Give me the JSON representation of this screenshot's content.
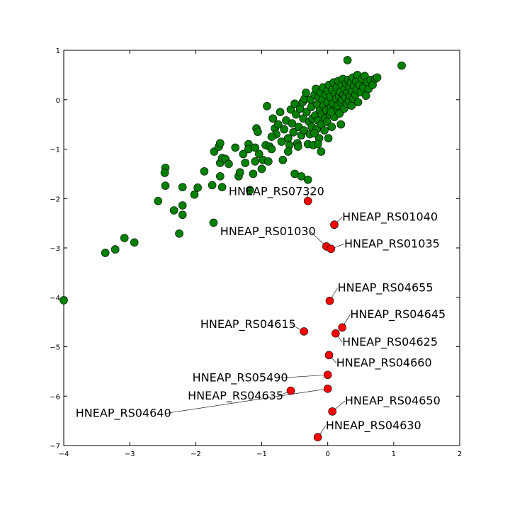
{
  "chart_data": {
    "type": "scatter",
    "title": "",
    "xlabel": "",
    "ylabel": "",
    "xlim": [
      -4,
      2
    ],
    "ylim": [
      -7,
      1
    ],
    "xticks": [
      -4,
      -3,
      -2,
      -1,
      0,
      1,
      2
    ],
    "xtick_labels": [
      "−4",
      "−3",
      "−2",
      "−1",
      "0",
      "1",
      "2"
    ],
    "yticks": [
      -7,
      -6,
      -5,
      -4,
      -3,
      -2,
      -1,
      0,
      1
    ],
    "ytick_labels": [
      "−7",
      "−6",
      "−5",
      "−4",
      "−3",
      "−2",
      "−1",
      "0",
      "1"
    ],
    "grid": false,
    "legend": "none",
    "series": [
      {
        "color": "#008000",
        "points": [
          [
            -4.0,
            -4.06
          ],
          [
            -3.37,
            -3.1
          ],
          [
            -3.22,
            -3.03
          ],
          [
            -3.08,
            -2.8
          ],
          [
            -2.93,
            -2.89
          ],
          [
            -2.57,
            -2.05
          ],
          [
            -2.46,
            -1.38
          ],
          [
            -2.47,
            -1.48
          ],
          [
            -2.46,
            -1.74
          ],
          [
            -2.33,
            -2.24
          ],
          [
            -2.25,
            -2.71
          ],
          [
            -2.2,
            -2.33
          ],
          [
            -2.2,
            -2.14
          ],
          [
            -2.2,
            -1.77
          ],
          [
            -2.02,
            -1.92
          ],
          [
            -1.97,
            -1.78
          ],
          [
            -1.87,
            -1.45
          ],
          [
            -1.75,
            -1.73
          ],
          [
            -1.73,
            -2.49
          ],
          [
            -1.72,
            -1.05
          ],
          [
            -1.65,
            -0.95
          ],
          [
            -1.63,
            -0.88
          ],
          [
            -1.63,
            -1.28
          ],
          [
            -1.63,
            -1.55
          ],
          [
            -1.6,
            -1.77
          ],
          [
            -1.6,
            -1.18
          ],
          [
            -1.55,
            -1.2
          ],
          [
            -1.5,
            -1.3
          ],
          [
            -1.4,
            -0.97
          ],
          [
            -1.35,
            -1.55
          ],
          [
            -1.33,
            -1.47
          ],
          [
            -1.28,
            -1.1
          ],
          [
            -1.25,
            -1.28
          ],
          [
            -1.2,
            -0.9
          ],
          [
            -1.2,
            -1.0
          ],
          [
            -1.18,
            -1.83
          ],
          [
            -1.13,
            -1.5
          ],
          [
            -1.1,
            -0.97
          ],
          [
            -1.1,
            -1.25
          ],
          [
            -1.08,
            -0.58
          ],
          [
            -1.06,
            -0.65
          ],
          [
            -1.04,
            -1.1
          ],
          [
            -1.0,
            -1.4
          ],
          [
            -0.98,
            -1.22
          ],
          [
            -0.94,
            -0.92
          ],
          [
            -0.92,
            -0.13
          ],
          [
            -0.9,
            -1.25
          ],
          [
            -0.88,
            -0.95
          ],
          [
            -0.85,
            -1.0
          ],
          [
            -0.83,
            -0.38
          ],
          [
            -0.8,
            -0.58
          ],
          [
            -0.78,
            -0.7
          ],
          [
            -0.75,
            -0.5
          ],
          [
            -0.72,
            -0.25
          ],
          [
            -0.7,
            -0.85
          ],
          [
            -0.68,
            -1.22
          ],
          [
            -0.66,
            -0.6
          ],
          [
            -0.63,
            -0.42
          ],
          [
            -0.6,
            -0.78
          ],
          [
            -0.58,
            -0.92
          ],
          [
            -0.56,
            -0.2
          ],
          [
            -0.54,
            -0.48
          ],
          [
            -0.52,
            -0.66
          ],
          [
            -0.5,
            -0.08
          ],
          [
            -0.48,
            -0.3
          ],
          [
            -0.5,
            -1.5
          ],
          [
            -0.46,
            -0.88
          ],
          [
            -0.44,
            -0.55
          ],
          [
            -0.42,
            -0.18
          ],
          [
            -0.4,
            -0.72
          ],
          [
            -0.4,
            -1.55
          ],
          [
            -0.38,
            -0.05
          ],
          [
            -0.37,
            -0.38
          ],
          [
            -0.36,
            -0.62
          ],
          [
            -0.35,
            0.02
          ],
          [
            -0.33,
            0.14
          ],
          [
            -0.32,
            -0.25
          ],
          [
            -0.3,
            -0.9
          ],
          [
            -0.3,
            -1.62
          ],
          [
            -0.28,
            -0.45
          ],
          [
            -0.27,
            -0.7
          ],
          [
            -0.26,
            0.0
          ],
          [
            -0.25,
            -0.15
          ],
          [
            -0.24,
            -0.55
          ],
          [
            -0.23,
            -0.38
          ],
          [
            -0.22,
            -0.92
          ],
          [
            -0.2,
            0.1
          ],
          [
            -0.19,
            -0.32
          ],
          [
            -0.18,
            0.22
          ],
          [
            -0.17,
            -0.6
          ],
          [
            -0.16,
            -0.1
          ],
          [
            -0.15,
            -0.42
          ],
          [
            -0.14,
            0.05
          ],
          [
            -0.13,
            -0.78
          ],
          [
            -0.12,
            -0.22
          ],
          [
            -0.11,
            0.15
          ],
          [
            -0.1,
            -1.05
          ],
          [
            -0.1,
            -0.5
          ],
          [
            -0.09,
            -0.3
          ],
          [
            -0.08,
            0.0
          ],
          [
            -0.07,
            0.25
          ],
          [
            -0.06,
            -0.12
          ],
          [
            -0.05,
            -0.62
          ],
          [
            -0.04,
            -0.38
          ],
          [
            -0.03,
            0.1
          ],
          [
            -0.02,
            -0.22
          ],
          [
            -0.01,
            -0.45
          ],
          [
            0.0,
            0.18
          ],
          [
            0.0,
            -0.05
          ],
          [
            0.01,
            -0.78
          ],
          [
            0.02,
            0.3
          ],
          [
            0.03,
            -0.3
          ],
          [
            0.04,
            0.06
          ],
          [
            0.05,
            -0.15
          ],
          [
            0.06,
            -0.55
          ],
          [
            0.07,
            0.2
          ],
          [
            0.08,
            -0.08
          ],
          [
            0.09,
            0.35
          ],
          [
            0.1,
            -0.35
          ],
          [
            0.11,
            0.12
          ],
          [
            0.12,
            -0.2
          ],
          [
            0.13,
            0.02
          ],
          [
            0.14,
            0.25
          ],
          [
            0.15,
            -0.12
          ],
          [
            0.16,
            0.38
          ],
          [
            0.17,
            0.08
          ],
          [
            0.18,
            -0.28
          ],
          [
            0.19,
            0.16
          ],
          [
            0.2,
            -0.05
          ],
          [
            0.21,
            0.3
          ],
          [
            0.22,
            0.0
          ],
          [
            0.23,
            0.42
          ],
          [
            0.24,
            0.1
          ],
          [
            0.25,
            -0.18
          ],
          [
            0.26,
            0.22
          ],
          [
            0.27,
            0.05
          ],
          [
            0.28,
            0.33
          ],
          [
            0.29,
            -0.08
          ],
          [
            0.3,
            0.8
          ],
          [
            0.3,
            0.15
          ],
          [
            0.31,
            0.4
          ],
          [
            0.32,
            -0.02
          ],
          [
            0.33,
            0.25
          ],
          [
            0.34,
            0.08
          ],
          [
            0.35,
            0.35
          ],
          [
            0.36,
            -0.12
          ],
          [
            0.37,
            0.18
          ],
          [
            0.38,
            0.45
          ],
          [
            0.39,
            0.02
          ],
          [
            0.4,
            0.28
          ],
          [
            0.42,
            0.1
          ],
          [
            0.43,
            0.38
          ],
          [
            0.44,
            0.2
          ],
          [
            0.45,
            0.5
          ],
          [
            0.46,
            -0.05
          ],
          [
            0.48,
            0.3
          ],
          [
            0.5,
            0.15
          ],
          [
            0.52,
            0.42
          ],
          [
            0.54,
            0.25
          ],
          [
            0.56,
            0.48
          ],
          [
            0.58,
            0.08
          ],
          [
            0.6,
            0.35
          ],
          [
            0.62,
            0.22
          ],
          [
            0.65,
            0.4
          ],
          [
            0.68,
            0.3
          ],
          [
            0.72,
            0.42
          ],
          [
            0.75,
            0.45
          ],
          [
            1.12,
            0.69
          ],
          [
            0.2,
            -0.5
          ],
          [
            -0.15,
            -0.9
          ],
          [
            -0.6,
            -1.05
          ],
          [
            -0.85,
            -0.75
          ],
          [
            0.05,
            -0.25
          ],
          [
            -0.2,
            -0.68
          ],
          [
            -0.45,
            -0.95
          ]
        ]
      },
      {
        "color": "#ff0000",
        "points": [
          [
            -0.3,
            -2.05
          ],
          [
            0.1,
            -2.53
          ],
          [
            -0.02,
            -2.97
          ],
          [
            0.05,
            -3.02
          ],
          [
            0.03,
            -4.07
          ],
          [
            -0.36,
            -4.69
          ],
          [
            0.22,
            -4.61
          ],
          [
            0.12,
            -4.73
          ],
          [
            0.02,
            -5.17
          ],
          [
            0.0,
            -5.57
          ],
          [
            -0.56,
            -5.89
          ],
          [
            0.0,
            -5.85
          ],
          [
            0.07,
            -6.31
          ],
          [
            -0.15,
            -6.83
          ]
        ]
      }
    ],
    "annotations": [
      {
        "text": "HNEAP_RS07320",
        "x": -0.3,
        "y": -2.05,
        "label_x": -1.5,
        "label_y": -1.93,
        "anchor": "start",
        "leader": true
      },
      {
        "text": "HNEAP_RS01040",
        "x": 0.1,
        "y": -2.53,
        "label_x": 0.22,
        "label_y": -2.45,
        "anchor": "start",
        "leader": true
      },
      {
        "text": "HNEAP_RS01030",
        "x": -0.02,
        "y": -2.97,
        "label_x": -1.63,
        "label_y": -2.74,
        "anchor": "start",
        "leader": true
      },
      {
        "text": "HNEAP_RS01035",
        "x": 0.05,
        "y": -3.02,
        "label_x": 0.25,
        "label_y": -2.99,
        "anchor": "start",
        "leader": true
      },
      {
        "text": "HNEAP_RS04655",
        "x": 0.03,
        "y": -4.07,
        "label_x": 0.15,
        "label_y": -3.88,
        "anchor": "start",
        "leader": true
      },
      {
        "text": "HNEAP_RS04615",
        "x": -0.36,
        "y": -4.69,
        "label_x": -1.93,
        "label_y": -4.62,
        "anchor": "start",
        "leader": true
      },
      {
        "text": "HNEAP_RS04645",
        "x": 0.22,
        "y": -4.61,
        "label_x": 0.34,
        "label_y": -4.42,
        "anchor": "start",
        "leader": true
      },
      {
        "text": "HNEAP_RS04625",
        "x": 0.12,
        "y": -4.73,
        "label_x": 0.22,
        "label_y": -4.98,
        "anchor": "start",
        "leader": true
      },
      {
        "text": "HNEAP_RS04660",
        "x": 0.02,
        "y": -5.17,
        "label_x": 0.13,
        "label_y": -5.4,
        "anchor": "start",
        "leader": true
      },
      {
        "text": "HNEAP_RS05490",
        "x": 0.0,
        "y": -5.57,
        "label_x": -2.05,
        "label_y": -5.7,
        "anchor": "start",
        "leader": true
      },
      {
        "text": "HNEAP_RS04635",
        "x": -0.56,
        "y": -5.89,
        "label_x": -2.12,
        "label_y": -6.07,
        "anchor": "start",
        "leader": true
      },
      {
        "text": "HNEAP_RS04640",
        "x": 0.0,
        "y": -5.85,
        "label_x": -3.82,
        "label_y": -6.42,
        "anchor": "start",
        "leader": true
      },
      {
        "text": "HNEAP_RS04650",
        "x": 0.07,
        "y": -6.31,
        "label_x": 0.26,
        "label_y": -6.17,
        "anchor": "start",
        "leader": true
      },
      {
        "text": "HNEAP_RS04630",
        "x": -0.15,
        "y": -6.83,
        "label_x": -0.03,
        "label_y": -6.67,
        "anchor": "start",
        "leader": true
      }
    ]
  }
}
